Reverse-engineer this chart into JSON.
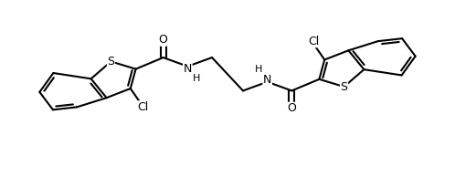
{
  "bg_color": "#ffffff",
  "line_color": "#000000",
  "figsize": [
    4.98,
    1.94
  ],
  "dpi": 100,
  "lw": 1.5,
  "font_size": 9,
  "atoms": {
    "S_label": "S",
    "Cl_label": "Cl",
    "O_label": "O",
    "N_label": "NH",
    "H_label": "H"
  }
}
